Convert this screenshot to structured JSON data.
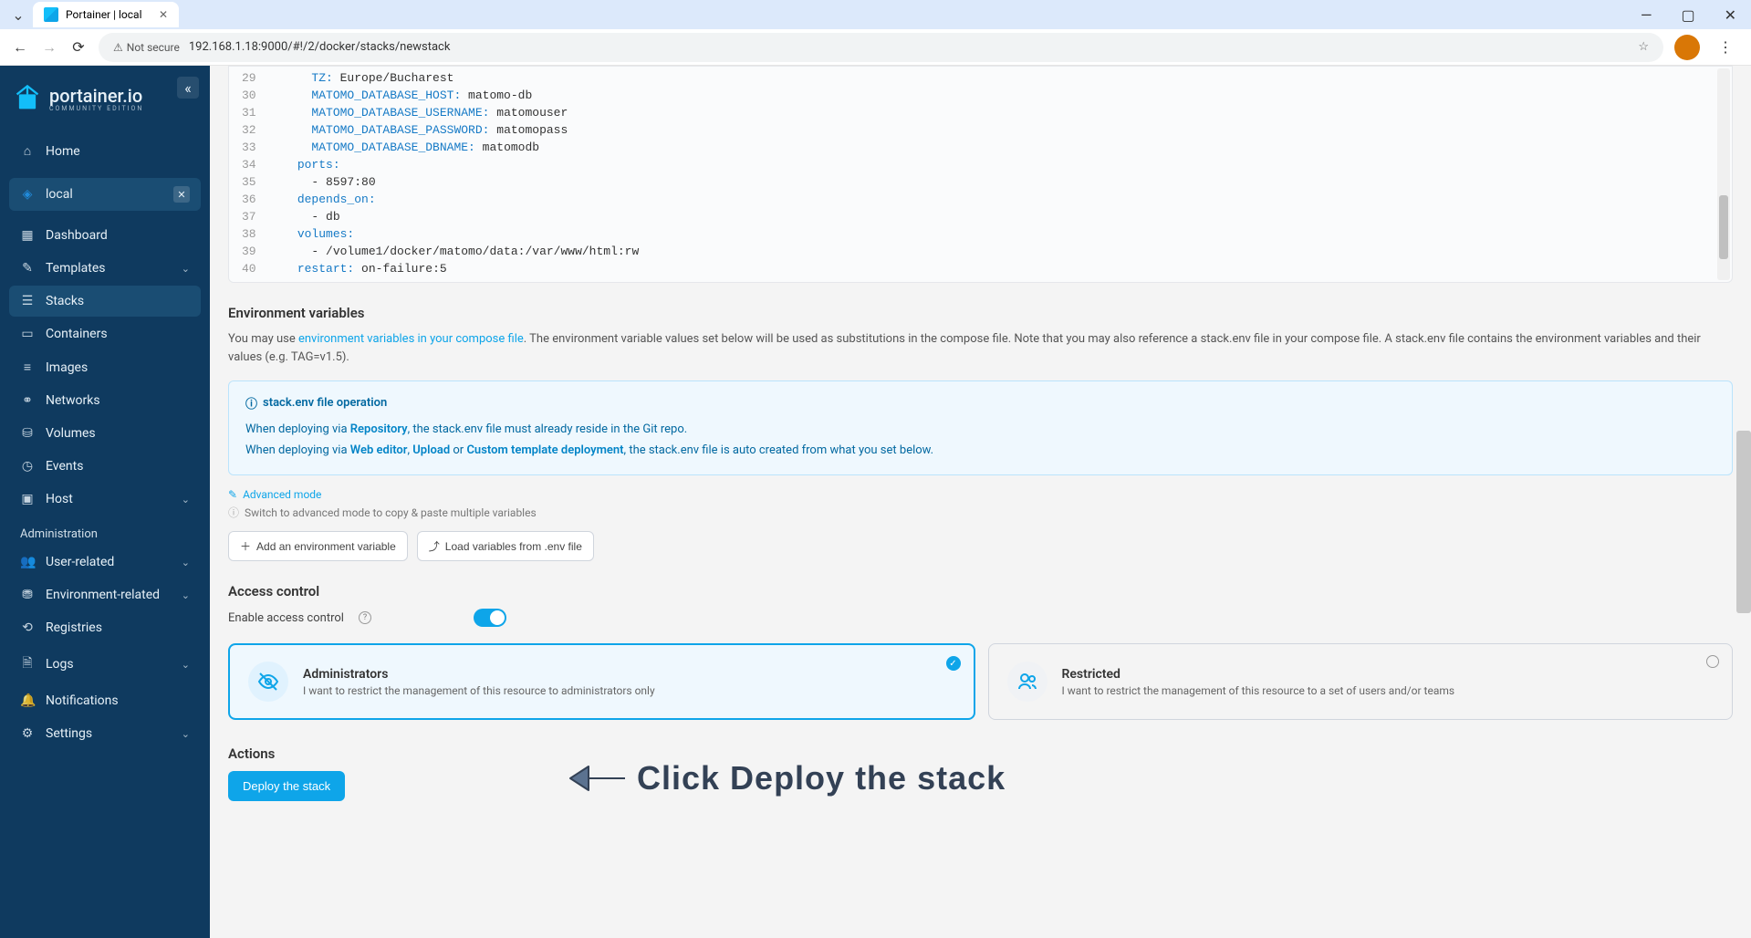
{
  "browser": {
    "tabTitle": "Portainer | local",
    "securityLabel": "Not secure",
    "url": "192.168.1.18:9000/#!/2/docker/stacks/newstack"
  },
  "sidebar": {
    "brand": "portainer.io",
    "brandSub": "COMMUNITY EDITION",
    "home": "Home",
    "env": "local",
    "items": {
      "dashboard": "Dashboard",
      "templates": "Templates",
      "stacks": "Stacks",
      "containers": "Containers",
      "images": "Images",
      "networks": "Networks",
      "volumes": "Volumes",
      "events": "Events",
      "host": "Host"
    },
    "adminLabel": "Administration",
    "admin": {
      "users": "User-related",
      "environment": "Environment-related",
      "registries": "Registries",
      "logs": "Logs",
      "notifications": "Notifications",
      "settings": "Settings"
    }
  },
  "editor": {
    "startLine": 29,
    "lines": [
      {
        "n": 29,
        "indent": 6,
        "key": "TZ:",
        "val": " Europe/Bucharest"
      },
      {
        "n": 30,
        "indent": 6,
        "key": "MATOMO_DATABASE_HOST:",
        "val": " matomo-db"
      },
      {
        "n": 31,
        "indent": 6,
        "key": "MATOMO_DATABASE_USERNAME:",
        "val": " matomouser"
      },
      {
        "n": 32,
        "indent": 6,
        "key": "MATOMO_DATABASE_PASSWORD:",
        "val": " matomopass"
      },
      {
        "n": 33,
        "indent": 6,
        "key": "MATOMO_DATABASE_DBNAME:",
        "val": " matomodb"
      },
      {
        "n": 34,
        "indent": 4,
        "key": "ports:",
        "val": ""
      },
      {
        "n": 35,
        "indent": 6,
        "key": "",
        "val": "- 8597:80"
      },
      {
        "n": 36,
        "indent": 4,
        "key": "depends_on:",
        "val": ""
      },
      {
        "n": 37,
        "indent": 6,
        "key": "",
        "val": "- db"
      },
      {
        "n": 38,
        "indent": 4,
        "key": "volumes:",
        "val": ""
      },
      {
        "n": 39,
        "indent": 6,
        "key": "",
        "val": "- /volume1/docker/matomo/data:/var/www/html:rw"
      },
      {
        "n": 40,
        "indent": 4,
        "key": "restart:",
        "val": " on-failure:5"
      }
    ]
  },
  "envSection": {
    "title": "Environment variables",
    "descPre": "You may use ",
    "descLink": "environment variables in your compose file",
    "descPost": ". The environment variable values set below will be used as substitutions in the compose file. Note that you may also reference a stack.env file in your compose file. A stack.env file contains the environment variables and their values (e.g. TAG=v1.5).",
    "infoTitle": "stack.env file operation",
    "infoLine1a": "When deploying via ",
    "infoLine1b": "Repository",
    "infoLine1c": ", the stack.env file must already reside in the Git repo.",
    "infoLine2a": "When deploying via ",
    "infoLine2b": "Web editor",
    "infoLine2c": ", ",
    "infoLine2d": "Upload",
    "infoLine2e": " or ",
    "infoLine2f": "Custom template deployment",
    "infoLine2g": ", the stack.env file is auto created from what you set below.",
    "advancedLink": "Advanced mode",
    "advancedHint": "Switch to advanced mode to copy & paste multiple variables",
    "addBtn": "Add an environment variable",
    "loadBtn": "Load variables from .env file"
  },
  "access": {
    "title": "Access control",
    "toggleLabel": "Enable access control",
    "admin": {
      "title": "Administrators",
      "desc": "I want to restrict the management of this resource to administrators only"
    },
    "restricted": {
      "title": "Restricted",
      "desc": "I want to restrict the management of this resource to a set of users and/or teams"
    }
  },
  "actions": {
    "title": "Actions",
    "deployBtn": "Deploy the stack"
  },
  "annotation": "Click Deploy the stack"
}
